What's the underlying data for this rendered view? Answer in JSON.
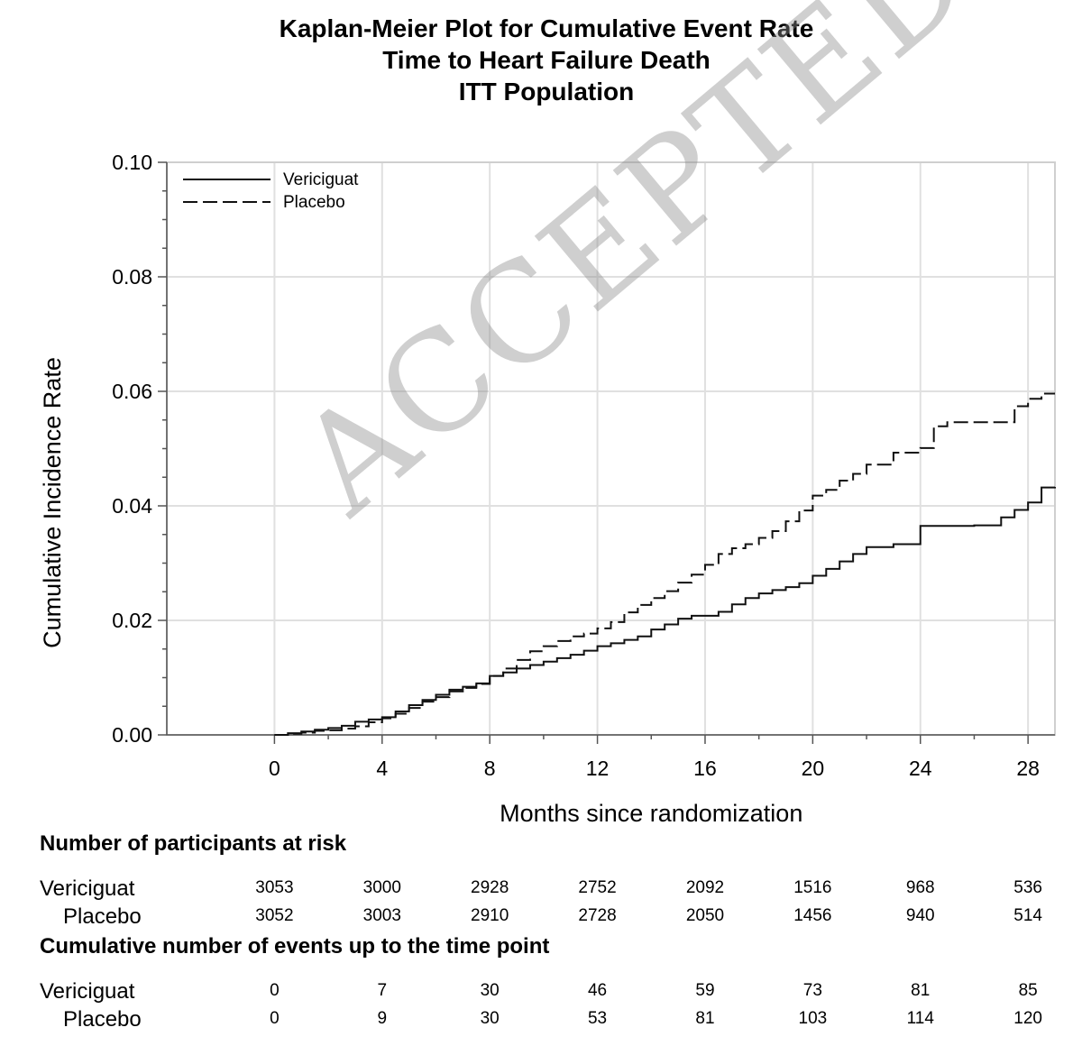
{
  "chart_data": {
    "type": "line",
    "title": "Kaplan-Meier Plot for Cumulative Event Rate",
    "subtitle": [
      "Time to Heart Failure Death",
      "ITT Population"
    ],
    "xlabel": "Months since randomization",
    "ylabel": "Cumulative Incidence Rate",
    "xlim": [
      -4,
      29
    ],
    "ylim": [
      0,
      0.1
    ],
    "xticks": [
      0,
      4,
      8,
      12,
      16,
      20,
      24,
      28
    ],
    "yticks": [
      0.0,
      0.02,
      0.04,
      0.06,
      0.08,
      0.1
    ],
    "ytick_labels": [
      "0.00",
      "0.02",
      "0.04",
      "0.06",
      "0.08",
      "0.10"
    ],
    "grid": true,
    "legend": "top-left",
    "series": [
      {
        "name": "Vericiguat",
        "style": "solid",
        "x": [
          0,
          0.5,
          1.0,
          1.5,
          2.0,
          2.5,
          3.0,
          3.5,
          4.0,
          4.5,
          5.0,
          5.5,
          6.0,
          6.5,
          7.0,
          7.5,
          8.0,
          8.5,
          9.0,
          9.5,
          10.0,
          10.5,
          11.0,
          11.5,
          12.0,
          12.5,
          13.0,
          13.5,
          14.0,
          14.5,
          15.0,
          15.5,
          16.0,
          16.5,
          17.0,
          17.5,
          18.0,
          18.5,
          19.0,
          19.5,
          20.0,
          20.5,
          21.0,
          21.5,
          22.0,
          23.0,
          24.0,
          25.0,
          26.0,
          27.0,
          27.5,
          28.0,
          28.5,
          29.0
        ],
        "y": [
          0,
          0.0003,
          0.0006,
          0.0009,
          0.0012,
          0.0016,
          0.0023,
          0.0027,
          0.0031,
          0.0041,
          0.0052,
          0.0061,
          0.007,
          0.0079,
          0.0084,
          0.009,
          0.0103,
          0.0109,
          0.0116,
          0.0122,
          0.0128,
          0.0134,
          0.014,
          0.0147,
          0.0155,
          0.016,
          0.0166,
          0.0172,
          0.0184,
          0.0193,
          0.0203,
          0.0208,
          0.0208,
          0.0215,
          0.0228,
          0.0239,
          0.0247,
          0.0253,
          0.0258,
          0.0265,
          0.0278,
          0.029,
          0.0303,
          0.0316,
          0.0328,
          0.0333,
          0.0365,
          0.0365,
          0.0366,
          0.038,
          0.0393,
          0.0406,
          0.0432,
          0.0433
        ]
      },
      {
        "name": "Placebo",
        "style": "dashed",
        "x": [
          0,
          0.5,
          1.0,
          1.5,
          2.0,
          2.5,
          3.0,
          3.5,
          4.0,
          4.5,
          5.0,
          5.5,
          6.0,
          6.5,
          7.0,
          7.5,
          8.0,
          8.5,
          9.0,
          9.5,
          10.0,
          10.5,
          11.0,
          11.5,
          12.0,
          12.5,
          13.0,
          13.5,
          14.0,
          14.5,
          15.0,
          15.5,
          16.0,
          16.5,
          17.0,
          17.5,
          18.0,
          18.5,
          19.0,
          19.5,
          20.0,
          20.5,
          21.0,
          21.5,
          22.0,
          23.0,
          24.0,
          24.5,
          25.0,
          26.0,
          27.0,
          27.5,
          28.0,
          28.5,
          29.0
        ],
        "y": [
          0,
          0.0002,
          0.0004,
          0.0007,
          0.0008,
          0.0011,
          0.0015,
          0.0022,
          0.0029,
          0.0037,
          0.0047,
          0.0058,
          0.0066,
          0.0076,
          0.0082,
          0.0089,
          0.0103,
          0.0116,
          0.0131,
          0.0146,
          0.0155,
          0.0164,
          0.0172,
          0.0177,
          0.0186,
          0.0197,
          0.0214,
          0.0227,
          0.0239,
          0.0251,
          0.0266,
          0.028,
          0.0297,
          0.0316,
          0.0326,
          0.0333,
          0.0344,
          0.0356,
          0.0373,
          0.0392,
          0.0418,
          0.0428,
          0.0444,
          0.0456,
          0.0472,
          0.0493,
          0.0501,
          0.0539,
          0.0546,
          0.0546,
          0.0546,
          0.0574,
          0.0587,
          0.0596,
          0.0596
        ]
      }
    ]
  },
  "at_risk": {
    "title": "Number of participants at risk",
    "rows": [
      {
        "label": "Vericiguat",
        "values": [
          "3053",
          "3000",
          "2928",
          "2752",
          "2092",
          "1516",
          "968",
          "536"
        ]
      },
      {
        "label": "Placebo",
        "values": [
          "3052",
          "3003",
          "2910",
          "2728",
          "2050",
          "1456",
          "940",
          "514"
        ]
      }
    ]
  },
  "cum_events": {
    "title": "Cumulative number of events up to the time point",
    "rows": [
      {
        "label": "Vericiguat",
        "values": [
          "0",
          "7",
          "30",
          "46",
          "59",
          "73",
          "81",
          "85"
        ]
      },
      {
        "label": "Placebo",
        "values": [
          "0",
          "9",
          "30",
          "53",
          "81",
          "103",
          "114",
          "120"
        ]
      }
    ]
  },
  "watermark": "ACCEPTED MANUSCRIPT"
}
